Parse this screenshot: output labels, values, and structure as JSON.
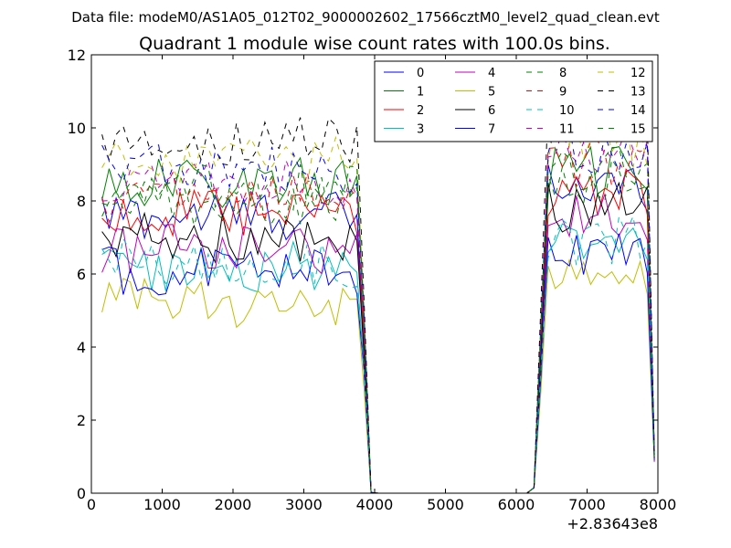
{
  "chart_data": {
    "type": "line",
    "suptitle": "Data file: modeM0/AS1A05_012T02_9000002602_17566cztM0_level2_quad_clean.evt",
    "title": "Quadrant 1 module wise count rates with 100.0s bins.",
    "xlabel": "",
    "ylabel": "",
    "x_offset_label": "+2.83643e8",
    "xlim": [
      0,
      8000
    ],
    "ylim": [
      0,
      12
    ],
    "xticks": [
      0,
      1000,
      2000,
      3000,
      4000,
      5000,
      6000,
      7000,
      8000
    ],
    "yticks": [
      0,
      2,
      4,
      6,
      8,
      10,
      12
    ],
    "legend_position": "top-right",
    "legend_columns": 4,
    "gaps_note": "zero counts from ~3950 to ~6250",
    "series": [
      {
        "name": "0",
        "color": "#0000ff",
        "dash": "solid",
        "low_level": 7.6,
        "high_level": 8.4
      },
      {
        "name": "1",
        "color": "#008000",
        "dash": "solid",
        "low_level": 8.5,
        "high_level": 8.8
      },
      {
        "name": "2",
        "color": "#ff0000",
        "dash": "solid",
        "low_level": 7.6,
        "high_level": 8.2
      },
      {
        "name": "3",
        "color": "#00bfbf",
        "dash": "solid",
        "low_level": 6.2,
        "high_level": 7.0
      },
      {
        "name": "4",
        "color": "#bf00bf",
        "dash": "solid",
        "low_level": 6.7,
        "high_level": 7.6
      },
      {
        "name": "5",
        "color": "#bfbf00",
        "dash": "solid",
        "low_level": 5.2,
        "high_level": 5.7
      },
      {
        "name": "6",
        "color": "#000000",
        "dash": "solid",
        "low_level": 7.0,
        "high_level": 7.8
      },
      {
        "name": "7",
        "color": "#0000ff",
        "dash": "solid",
        "low_level": 6.1,
        "high_level": 6.5
      },
      {
        "name": "8",
        "color": "#008000",
        "dash": "dashed",
        "low_level": 8.0,
        "high_level": 8.6
      },
      {
        "name": "9",
        "color": "#ff0000",
        "dash": "dashed",
        "low_level": 8.1,
        "high_level": 9.0
      },
      {
        "name": "10",
        "color": "#00bfbf",
        "dash": "dashed",
        "low_level": 6.3,
        "high_level": 6.9
      },
      {
        "name": "11",
        "color": "#bf00bf",
        "dash": "dashed",
        "low_level": 8.6,
        "high_level": 9.3
      },
      {
        "name": "12",
        "color": "#bfbf00",
        "dash": "dashed",
        "low_level": 9.1,
        "high_level": 9.6
      },
      {
        "name": "13",
        "color": "#000000",
        "dash": "dashed",
        "low_level": 9.6,
        "high_level": 10.5
      },
      {
        "name": "14",
        "color": "#0000ff",
        "dash": "dashed",
        "low_level": 8.9,
        "high_level": 9.4
      },
      {
        "name": "15",
        "color": "#008000",
        "dash": "dashed",
        "low_level": 8.3,
        "high_level": 8.9
      }
    ]
  }
}
